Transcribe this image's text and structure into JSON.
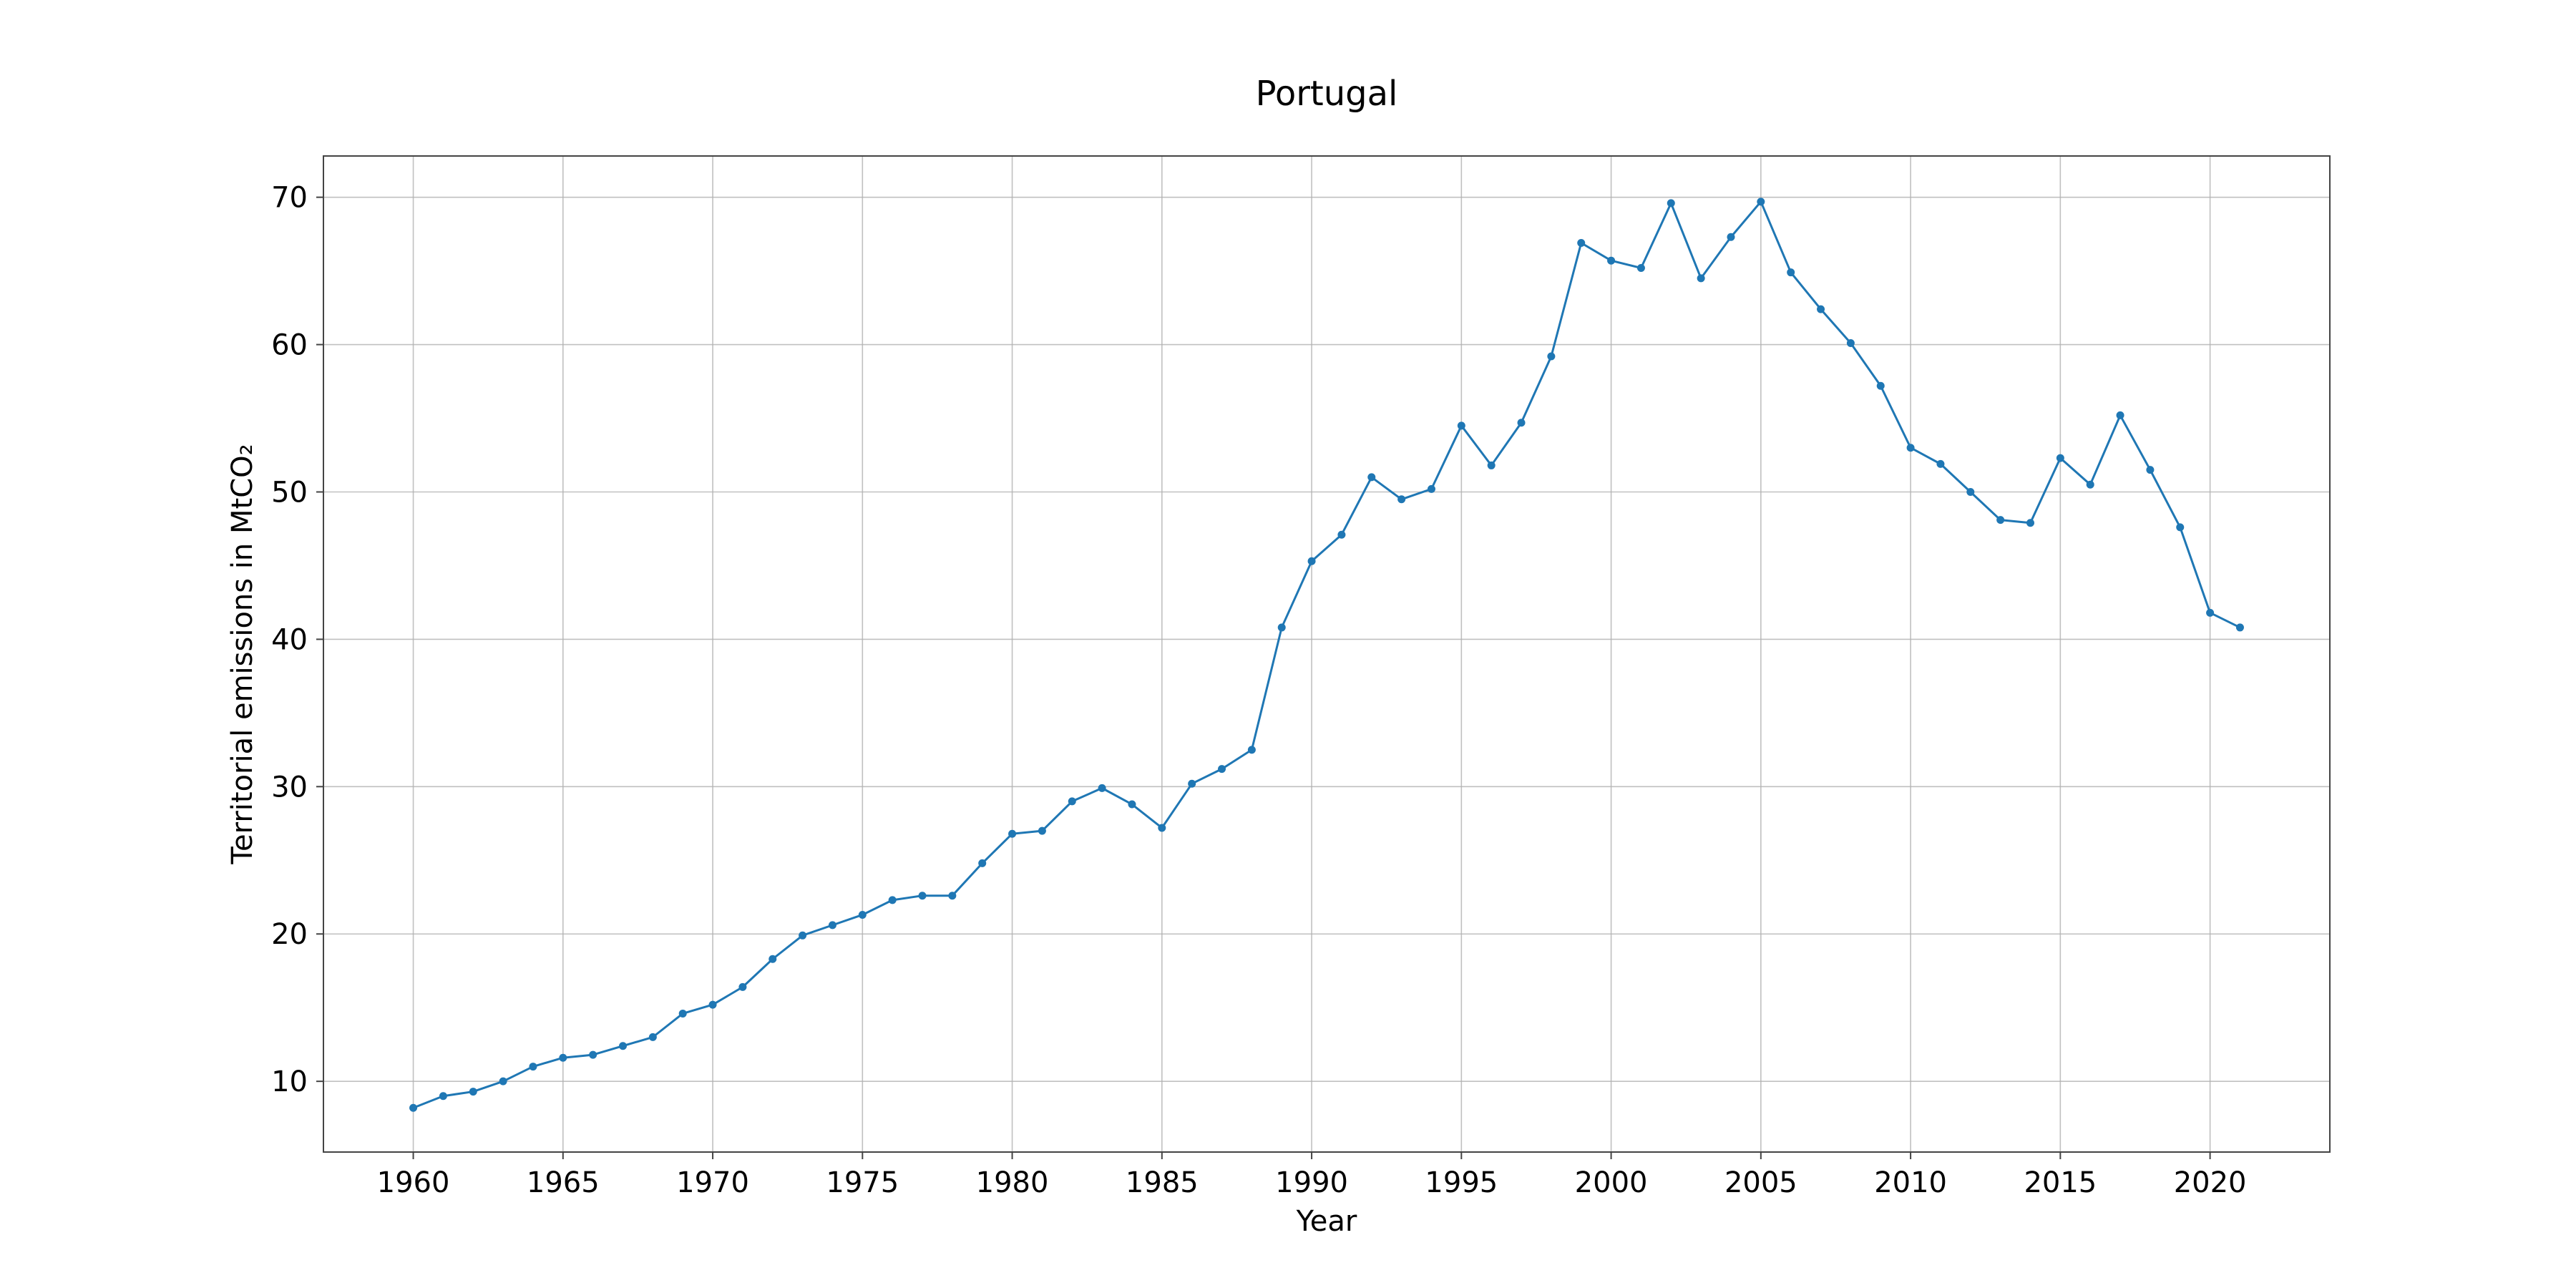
{
  "chart_data": {
    "type": "line",
    "title": "Portugal",
    "xlabel": "Year",
    "ylabel": "Territorial emissions in MtCO₂",
    "xlim": [
      1957,
      2024
    ],
    "ylim": [
      5.2,
      72.8
    ],
    "xticks": [
      1960,
      1965,
      1970,
      1975,
      1980,
      1985,
      1990,
      1995,
      2000,
      2005,
      2010,
      2015,
      2020
    ],
    "yticks": [
      10,
      20,
      30,
      40,
      50,
      60,
      70
    ],
    "grid": true,
    "series_color": "#1f77b4",
    "series": [
      {
        "x": [
          1960,
          1961,
          1962,
          1963,
          1964,
          1965,
          1966,
          1967,
          1968,
          1969,
          1970,
          1971,
          1972,
          1973,
          1974,
          1975,
          1976,
          1977,
          1978,
          1979,
          1980,
          1981,
          1982,
          1983,
          1984,
          1985,
          1986,
          1987,
          1988,
          1989,
          1990,
          1991,
          1992,
          1993,
          1994,
          1995,
          1996,
          1997,
          1998,
          1999,
          2000,
          2001,
          2002,
          2003,
          2004,
          2005,
          2006,
          2007,
          2008,
          2009,
          2010,
          2011,
          2012,
          2013,
          2014,
          2015,
          2016,
          2017,
          2018,
          2019,
          2020,
          2021
        ],
        "values": [
          8.2,
          9.0,
          9.3,
          10.0,
          11.0,
          11.6,
          11.8,
          12.4,
          13.0,
          14.6,
          15.2,
          16.4,
          18.3,
          19.9,
          20.6,
          21.3,
          22.3,
          22.6,
          22.6,
          24.8,
          26.8,
          27.0,
          29.0,
          29.9,
          28.8,
          27.2,
          30.2,
          31.2,
          32.5,
          40.8,
          45.3,
          47.1,
          51.0,
          49.5,
          50.2,
          54.5,
          51.8,
          54.7,
          59.2,
          66.9,
          65.7,
          65.2,
          69.6,
          64.5,
          67.3,
          69.7,
          64.9,
          62.4,
          60.1,
          57.2,
          53.0,
          51.9,
          50.0,
          48.1,
          47.9,
          52.3,
          50.5,
          55.2,
          51.5,
          47.6,
          41.8,
          40.8
        ]
      }
    ]
  }
}
